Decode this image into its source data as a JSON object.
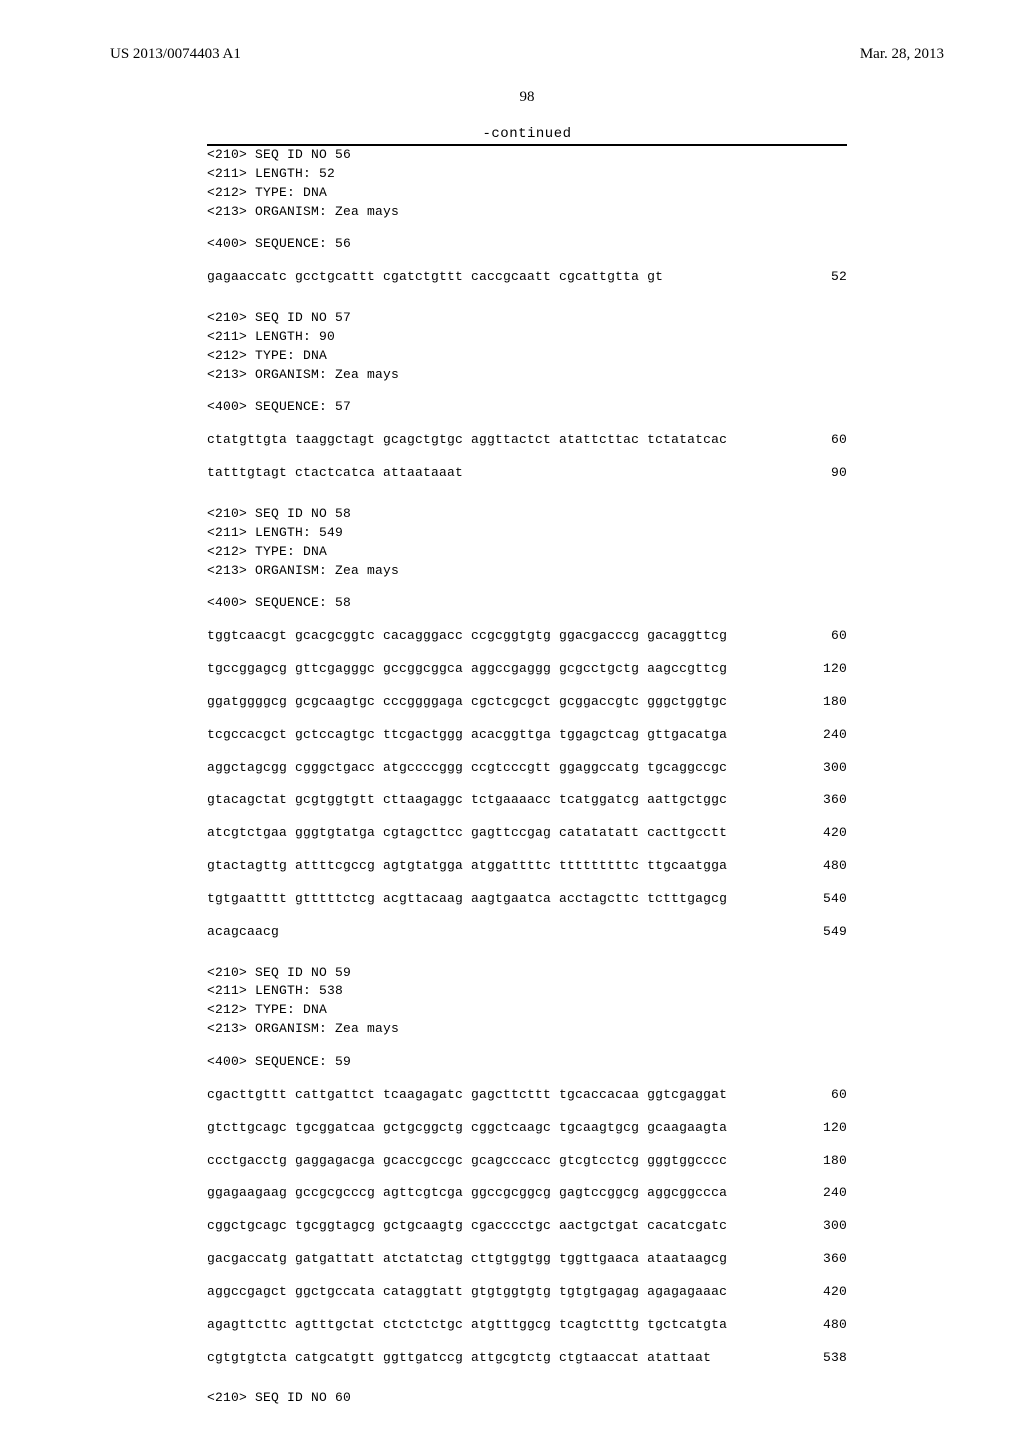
{
  "header": {
    "pub_number": "US 2013/0074403 A1",
    "pub_date": "Mar. 28, 2013"
  },
  "page_number": "98",
  "continued_label": "-continued",
  "entries": [
    {
      "meta": [
        "<210> SEQ ID NO 56",
        "<211> LENGTH: 52",
        "<212> TYPE: DNA",
        "<213> ORGANISM: Zea mays"
      ],
      "seq_header": "<400> SEQUENCE: 56",
      "rows": [
        {
          "seq": "gagaaccatc gcctgcattt cgatctgttt caccgcaatt cgcattgtta gt",
          "pos": "52"
        }
      ]
    },
    {
      "meta": [
        "<210> SEQ ID NO 57",
        "<211> LENGTH: 90",
        "<212> TYPE: DNA",
        "<213> ORGANISM: Zea mays"
      ],
      "seq_header": "<400> SEQUENCE: 57",
      "rows": [
        {
          "seq": "ctatgttgta taaggctagt gcagctgtgc aggttactct atattcttac tctatatcac",
          "pos": "60"
        },
        {
          "seq": "tatttgtagt ctactcatca attaataaat",
          "pos": "90"
        }
      ]
    },
    {
      "meta": [
        "<210> SEQ ID NO 58",
        "<211> LENGTH: 549",
        "<212> TYPE: DNA",
        "<213> ORGANISM: Zea mays"
      ],
      "seq_header": "<400> SEQUENCE: 58",
      "rows": [
        {
          "seq": "tggtcaacgt gcacgcggtc cacagggacc ccgcggtgtg ggacgacccg gacaggttcg",
          "pos": "60"
        },
        {
          "seq": "tgccggagcg gttcgagggc gccggcggca aggccgaggg gcgcctgctg aagccgttcg",
          "pos": "120"
        },
        {
          "seq": "ggatggggcg gcgcaagtgc cccggggaga cgctcgcgct gcggaccgtc gggctggtgc",
          "pos": "180"
        },
        {
          "seq": "tcgccacgct gctccagtgc ttcgactggg acacggttga tggagctcag gttgacatga",
          "pos": "240"
        },
        {
          "seq": "aggctagcgg cgggctgacc atgccccggg ccgtcccgtt ggaggccatg tgcaggccgc",
          "pos": "300"
        },
        {
          "seq": "gtacagctat gcgtggtgtt cttaagaggc tctgaaaacc tcatggatcg aattgctggc",
          "pos": "360"
        },
        {
          "seq": "atcgtctgaa gggtgtatga cgtagcttcc gagttccgag catatatatt cacttgcctt",
          "pos": "420"
        },
        {
          "seq": "gtactagttg attttcgccg agtgtatgga atggattttc tttttttttc ttgcaatgga",
          "pos": "480"
        },
        {
          "seq": "tgtgaatttt gtttttctcg acgttacaag aagtgaatca acctagcttc tctttgagcg",
          "pos": "540"
        },
        {
          "seq": "acagcaacg",
          "pos": "549"
        }
      ]
    },
    {
      "meta": [
        "<210> SEQ ID NO 59",
        "<211> LENGTH: 538",
        "<212> TYPE: DNA",
        "<213> ORGANISM: Zea mays"
      ],
      "seq_header": "<400> SEQUENCE: 59",
      "rows": [
        {
          "seq": "cgacttgttt cattgattct tcaagagatc gagcttcttt tgcaccacaa ggtcgaggat",
          "pos": "60"
        },
        {
          "seq": "gtcttgcagc tgcggatcaa gctgcggctg cggctcaagc tgcaagtgcg gcaagaagta",
          "pos": "120"
        },
        {
          "seq": "ccctgacctg gaggagacga gcaccgccgc gcagcccacc gtcgtcctcg gggtggcccc",
          "pos": "180"
        },
        {
          "seq": "ggagaagaag gccgcgcccg agttcgtcga ggccgcggcg gagtccggcg aggcggccca",
          "pos": "240"
        },
        {
          "seq": "cggctgcagc tgcggtagcg gctgcaagtg cgacccctgc aactgctgat cacatcgatc",
          "pos": "300"
        },
        {
          "seq": "gacgaccatg gatgattatt atctatctag cttgtggtgg tggttgaaca ataataagcg",
          "pos": "360"
        },
        {
          "seq": "aggccgagct ggctgccata cataggtatt gtgtggtgtg tgtgtgagag agagagaaac",
          "pos": "420"
        },
        {
          "seq": "agagttcttc agtttgctat ctctctctgc atgtttggcg tcagtctttg tgctcatgta",
          "pos": "480"
        },
        {
          "seq": "cgtgtgtcta catgcatgtt ggttgatccg attgcgtctg ctgtaaccat atattaat",
          "pos": "538"
        }
      ]
    }
  ],
  "trailing_meta": "<210> SEQ ID NO 60"
}
